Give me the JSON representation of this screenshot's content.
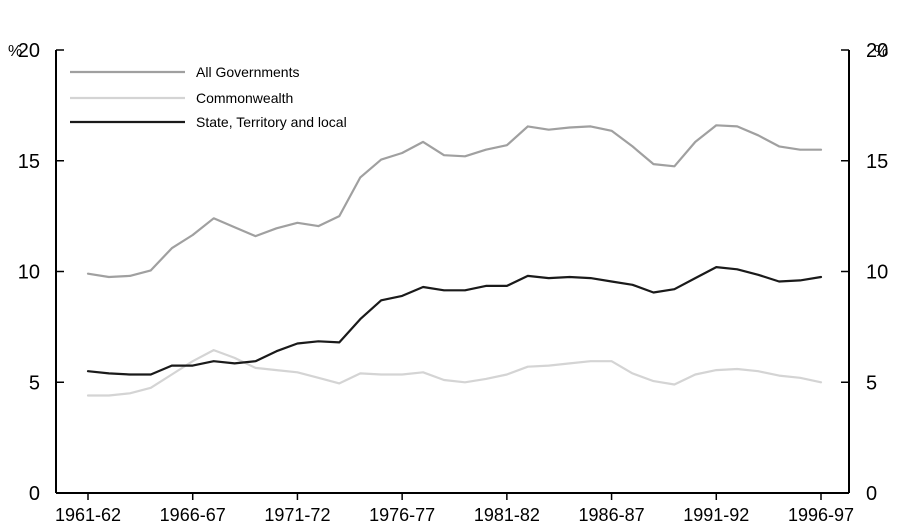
{
  "chart_data": {
    "type": "line",
    "unit_left": "%",
    "unit_right": "%",
    "xlabel": "",
    "ylabel": "",
    "ylim": [
      0,
      20
    ],
    "yticks": [
      0,
      5,
      10,
      15,
      20
    ],
    "x_tick_labels": [
      "1961-62",
      "1966-67",
      "1971-72",
      "1976-77",
      "1981-82",
      "1986-87",
      "1991-92",
      "1996-97"
    ],
    "x_tick_indices": [
      0,
      5,
      10,
      15,
      20,
      25,
      30,
      35
    ],
    "grid": false,
    "legend_position": "top-left",
    "x": [
      "1961-62",
      "1962-63",
      "1963-64",
      "1964-65",
      "1965-66",
      "1966-67",
      "1967-68",
      "1968-69",
      "1969-70",
      "1970-71",
      "1971-72",
      "1972-73",
      "1973-74",
      "1974-75",
      "1975-76",
      "1976-77",
      "1977-78",
      "1978-79",
      "1979-80",
      "1980-81",
      "1981-82",
      "1982-83",
      "1983-84",
      "1984-85",
      "1985-86",
      "1986-87",
      "1987-88",
      "1988-89",
      "1989-90",
      "1990-91",
      "1991-92",
      "1992-93",
      "1993-94",
      "1994-95",
      "1995-96",
      "1996-97"
    ],
    "series": [
      {
        "name": "All Governments",
        "color": "#a0a0a0",
        "values": [
          9.9,
          9.75,
          9.8,
          10.05,
          11.05,
          11.65,
          12.4,
          12.0,
          11.6,
          11.95,
          12.2,
          12.05,
          12.5,
          14.25,
          15.05,
          15.35,
          15.85,
          15.25,
          15.2,
          15.5,
          15.7,
          16.55,
          16.4,
          16.5,
          16.55,
          16.35,
          15.65,
          14.85,
          14.75,
          15.85,
          16.6,
          16.55,
          16.15,
          15.65,
          15.5,
          15.5
        ]
      },
      {
        "name": "Commonwealth",
        "color": "#d4d4d4",
        "values": [
          4.4,
          4.4,
          4.5,
          4.75,
          5.35,
          5.95,
          6.45,
          6.1,
          5.65,
          5.55,
          5.45,
          5.2,
          4.95,
          5.4,
          5.35,
          5.35,
          5.45,
          5.1,
          5.0,
          5.15,
          5.35,
          5.7,
          5.75,
          5.85,
          5.95,
          5.95,
          5.4,
          5.05,
          4.9,
          5.35,
          5.55,
          5.6,
          5.5,
          5.3,
          5.2,
          5.0
        ]
      },
      {
        "name": "State, Territory and local",
        "color": "#1a1a1a",
        "values": [
          5.5,
          5.4,
          5.35,
          5.35,
          5.75,
          5.75,
          5.95,
          5.85,
          5.95,
          6.4,
          6.75,
          6.85,
          6.8,
          7.85,
          8.7,
          8.9,
          9.3,
          9.15,
          9.15,
          9.35,
          9.35,
          9.8,
          9.7,
          9.75,
          9.7,
          9.55,
          9.4,
          9.05,
          9.2,
          9.7,
          10.2,
          10.1,
          9.85,
          9.55,
          9.6,
          9.75
        ]
      }
    ]
  }
}
